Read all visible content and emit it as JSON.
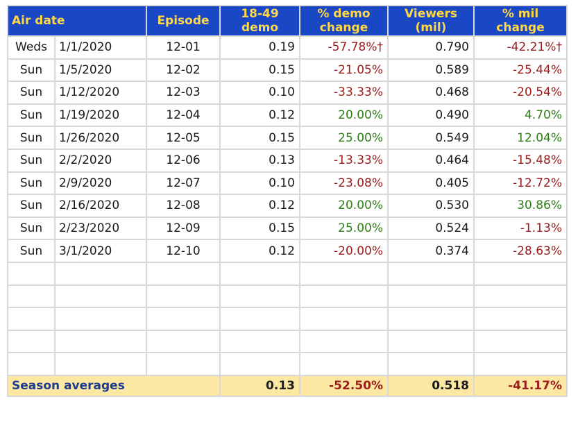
{
  "headers": {
    "air_date": "Air date",
    "episode": "Episode",
    "demo_line1": "18-49",
    "demo_line2": "demo",
    "demo_change_line1": "% demo",
    "demo_change_line2": "change",
    "viewers_line1": "Viewers",
    "viewers_line2": "(mil)",
    "mil_change_line1": "% mil",
    "mil_change_line2": "change"
  },
  "rows": [
    {
      "day": "Weds",
      "date": "1/1/2020",
      "episode": "12-01",
      "demo": "0.19",
      "demo_change": "-57.78%†",
      "viewers": "0.790",
      "mil_change": "-42.21%†"
    },
    {
      "day": "Sun",
      "date": "1/5/2020",
      "episode": "12-02",
      "demo": "0.15",
      "demo_change": "-21.05%",
      "viewers": "0.589",
      "mil_change": "-25.44%"
    },
    {
      "day": "Sun",
      "date": "1/12/2020",
      "episode": "12-03",
      "demo": "0.10",
      "demo_change": "-33.33%",
      "viewers": "0.468",
      "mil_change": "-20.54%"
    },
    {
      "day": "Sun",
      "date": "1/19/2020",
      "episode": "12-04",
      "demo": "0.12",
      "demo_change": "20.00%",
      "viewers": "0.490",
      "mil_change": "4.70%"
    },
    {
      "day": "Sun",
      "date": "1/26/2020",
      "episode": "12-05",
      "demo": "0.15",
      "demo_change": "25.00%",
      "viewers": "0.549",
      "mil_change": "12.04%"
    },
    {
      "day": "Sun",
      "date": "2/2/2020",
      "episode": "12-06",
      "demo": "0.13",
      "demo_change": "-13.33%",
      "viewers": "0.464",
      "mil_change": "-15.48%"
    },
    {
      "day": "Sun",
      "date": "2/9/2020",
      "episode": "12-07",
      "demo": "0.10",
      "demo_change": "-23.08%",
      "viewers": "0.405",
      "mil_change": "-12.72%"
    },
    {
      "day": "Sun",
      "date": "2/16/2020",
      "episode": "12-08",
      "demo": "0.12",
      "demo_change": "20.00%",
      "viewers": "0.530",
      "mil_change": "30.86%"
    },
    {
      "day": "Sun",
      "date": "2/23/2020",
      "episode": "12-09",
      "demo": "0.15",
      "demo_change": "25.00%",
      "viewers": "0.524",
      "mil_change": "-1.13%"
    },
    {
      "day": "Sun",
      "date": "3/1/2020",
      "episode": "12-10",
      "demo": "0.12",
      "demo_change": "-20.00%",
      "viewers": "0.374",
      "mil_change": "-28.63%"
    }
  ],
  "footer": {
    "label": "Season averages",
    "demo": "0.13",
    "demo_change": "-52.50%",
    "viewers": "0.518",
    "mil_change": "-41.17%"
  },
  "colors": {
    "header_bg": "#1a48c4",
    "header_text": "#ffd84a",
    "negative": "#9b1c1c",
    "positive": "#2e7d16",
    "footer_bg": "#fde8a3",
    "footer_label": "#1d3d8c"
  }
}
